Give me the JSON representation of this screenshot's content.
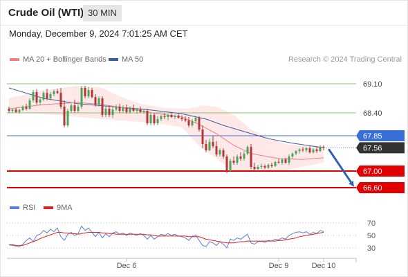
{
  "header": {
    "title": "Crude Oil (WTI)",
    "timeframe": "30 MIN",
    "datetime": "Monday, December 9, 2024 7:01:25 AM CET"
  },
  "legend": {
    "ma20_label": "MA 20 + Bollinger Bands",
    "ma20_color": "#f08080",
    "ma50_label": "MA 50",
    "ma50_color": "#3a5fa0"
  },
  "credit": "Research © 2024 Trading Central",
  "rsi_legend": {
    "rsi_label": "RSI",
    "rsi_color": "#5b7fd6",
    "ma9_label": "9MA",
    "ma9_color": "#e02020"
  },
  "chart_data": [
    {
      "type": "candlestick",
      "title": "Crude Oil (WTI)",
      "timeframe": "30 MIN",
      "ylim": [
        66.5,
        69.3
      ],
      "x_tick_labels": [
        "Dec 6",
        "Dec 9",
        "Dec 10"
      ],
      "candles": [
        [
          68.5,
          68.55,
          68.4,
          68.45
        ],
        [
          68.45,
          68.5,
          68.4,
          68.48
        ],
        [
          68.48,
          68.52,
          68.4,
          68.42
        ],
        [
          68.42,
          68.5,
          68.38,
          68.47
        ],
        [
          68.47,
          68.58,
          68.44,
          68.55
        ],
        [
          68.55,
          68.62,
          68.46,
          68.5
        ],
        [
          68.5,
          68.75,
          68.48,
          68.7
        ],
        [
          68.7,
          68.95,
          68.65,
          68.9
        ],
        [
          68.9,
          68.98,
          68.6,
          68.65
        ],
        [
          68.65,
          68.78,
          68.58,
          68.72
        ],
        [
          68.72,
          68.92,
          68.68,
          68.88
        ],
        [
          68.88,
          68.98,
          68.7,
          68.75
        ],
        [
          68.75,
          68.9,
          68.7,
          68.85
        ],
        [
          68.85,
          68.96,
          68.8,
          68.92
        ],
        [
          68.92,
          68.98,
          68.85,
          68.88
        ],
        [
          68.88,
          69.0,
          68.5,
          68.55
        ],
        [
          68.55,
          68.7,
          68.05,
          68.1
        ],
        [
          68.1,
          68.5,
          68.05,
          68.45
        ],
        [
          68.45,
          68.62,
          68.4,
          68.58
        ],
        [
          68.58,
          68.72,
          68.4,
          68.45
        ],
        [
          68.45,
          68.6,
          68.4,
          68.55
        ],
        [
          68.55,
          69.05,
          68.5,
          69.0
        ],
        [
          69.0,
          69.05,
          68.75,
          68.8
        ],
        [
          68.8,
          69.02,
          68.75,
          68.95
        ],
        [
          68.95,
          69.0,
          68.75,
          68.78
        ],
        [
          68.78,
          68.85,
          68.55,
          68.6
        ],
        [
          68.6,
          68.8,
          68.55,
          68.75
        ],
        [
          68.75,
          68.8,
          68.3,
          68.35
        ],
        [
          68.35,
          68.55,
          68.3,
          68.5
        ],
        [
          68.5,
          68.58,
          68.3,
          68.35
        ],
        [
          68.35,
          68.55,
          68.28,
          68.48
        ],
        [
          68.48,
          68.6,
          68.44,
          68.55
        ],
        [
          68.55,
          68.62,
          68.4,
          68.45
        ],
        [
          68.45,
          68.58,
          68.4,
          68.52
        ],
        [
          68.52,
          68.6,
          68.38,
          68.42
        ],
        [
          68.42,
          68.55,
          68.38,
          68.5
        ],
        [
          68.5,
          68.6,
          68.42,
          68.45
        ],
        [
          68.45,
          68.52,
          68.38,
          68.48
        ],
        [
          68.48,
          68.55,
          68.4,
          68.42
        ],
        [
          68.42,
          68.5,
          68.38,
          68.45
        ],
        [
          68.45,
          68.5,
          68.1,
          68.15
        ],
        [
          68.15,
          68.4,
          68.1,
          68.35
        ],
        [
          68.35,
          68.4,
          68.1,
          68.15
        ],
        [
          68.15,
          68.32,
          68.1,
          68.25
        ],
        [
          68.25,
          68.35,
          68.2,
          68.32
        ],
        [
          68.32,
          68.4,
          68.25,
          68.3
        ],
        [
          68.3,
          68.38,
          68.22,
          68.35
        ],
        [
          68.35,
          68.4,
          68.28,
          68.3
        ],
        [
          68.3,
          68.36,
          68.25,
          68.33
        ],
        [
          68.33,
          68.38,
          68.26,
          68.28
        ],
        [
          68.28,
          68.34,
          68.2,
          68.25
        ],
        [
          68.25,
          68.32,
          68.18,
          68.22
        ],
        [
          68.22,
          68.3,
          68.05,
          68.1
        ],
        [
          68.1,
          68.25,
          68.05,
          68.2
        ],
        [
          68.2,
          68.3,
          68.15,
          68.28
        ],
        [
          68.28,
          68.32,
          67.95,
          68.0
        ],
        [
          68.0,
          68.1,
          67.55,
          67.65
        ],
        [
          67.65,
          67.75,
          67.45,
          67.5
        ],
        [
          67.5,
          67.78,
          67.48,
          67.7
        ],
        [
          67.7,
          67.85,
          67.55,
          67.6
        ],
        [
          67.6,
          67.72,
          67.35,
          67.4
        ],
        [
          67.4,
          67.55,
          67.35,
          67.5
        ],
        [
          67.5,
          67.55,
          67.3,
          67.35
        ],
        [
          67.35,
          67.4,
          66.95,
          67.0
        ],
        [
          67.0,
          67.3,
          66.98,
          67.25
        ],
        [
          67.25,
          67.35,
          67.15,
          67.2
        ],
        [
          67.2,
          67.4,
          67.15,
          67.35
        ],
        [
          67.35,
          67.45,
          67.25,
          67.3
        ],
        [
          67.3,
          67.48,
          67.25,
          67.42
        ],
        [
          67.42,
          67.62,
          67.38,
          67.58
        ],
        [
          67.58,
          67.65,
          67.05,
          67.1
        ],
        [
          67.1,
          67.2,
          67.0,
          67.05
        ],
        [
          67.05,
          67.15,
          67.0,
          67.1
        ],
        [
          67.1,
          67.18,
          67.05,
          67.12
        ],
        [
          67.12,
          67.16,
          67.05,
          67.08
        ],
        [
          67.08,
          67.18,
          67.05,
          67.15
        ],
        [
          67.15,
          67.2,
          67.08,
          67.12
        ],
        [
          67.12,
          67.25,
          67.1,
          67.22
        ],
        [
          67.22,
          67.3,
          67.18,
          67.2
        ],
        [
          67.2,
          67.3,
          67.15,
          67.28
        ],
        [
          67.28,
          67.32,
          67.18,
          67.2
        ],
        [
          67.2,
          67.4,
          67.15,
          67.35
        ],
        [
          67.35,
          67.45,
          67.3,
          67.42
        ],
        [
          67.42,
          67.5,
          67.38,
          67.48
        ],
        [
          67.48,
          67.55,
          67.42,
          67.52
        ],
        [
          67.52,
          67.58,
          67.46,
          67.5
        ],
        [
          67.5,
          67.58,
          67.45,
          67.55
        ],
        [
          67.55,
          67.6,
          67.42,
          67.45
        ],
        [
          67.45,
          67.55,
          67.42,
          67.52
        ],
        [
          67.52,
          67.58,
          67.44,
          67.48
        ],
        [
          67.48,
          67.62,
          67.46,
          67.58
        ],
        [
          67.58,
          67.62,
          67.5,
          67.56
        ]
      ],
      "ma20": [
        [
          0,
          68.5
        ],
        [
          10,
          68.6
        ],
        [
          20,
          68.65
        ],
        [
          27,
          68.6
        ],
        [
          35,
          68.5
        ],
        [
          43,
          68.38
        ],
        [
          50,
          68.3
        ],
        [
          55,
          68.12
        ],
        [
          60,
          67.9
        ],
        [
          65,
          67.62
        ],
        [
          70,
          67.42
        ],
        [
          78,
          67.3
        ],
        [
          85,
          67.28
        ],
        [
          91,
          67.32
        ]
      ],
      "bollinger_upper": [
        [
          0,
          68.75
        ],
        [
          10,
          68.95
        ],
        [
          20,
          69.05
        ],
        [
          27,
          69.0
        ],
        [
          32,
          68.8
        ],
        [
          38,
          68.62
        ],
        [
          45,
          68.52
        ],
        [
          52,
          68.5
        ],
        [
          56,
          68.58
        ],
        [
          60,
          68.55
        ],
        [
          65,
          68.35
        ],
        [
          70,
          68.0
        ],
        [
          75,
          67.8
        ],
        [
          80,
          67.65
        ],
        [
          85,
          67.6
        ],
        [
          91,
          67.62
        ]
      ],
      "bollinger_lower": [
        [
          0,
          68.4
        ],
        [
          10,
          68.38
        ],
        [
          20,
          68.3
        ],
        [
          27,
          68.25
        ],
        [
          35,
          68.2
        ],
        [
          43,
          68.15
        ],
        [
          50,
          68.05
        ],
        [
          55,
          67.6
        ],
        [
          60,
          67.3
        ],
        [
          65,
          66.98
        ],
        [
          70,
          66.98
        ],
        [
          78,
          67.0
        ],
        [
          85,
          67.1
        ],
        [
          91,
          67.2
        ]
      ],
      "ma50": [
        [
          0,
          69.0
        ],
        [
          10,
          68.75
        ],
        [
          20,
          68.62
        ],
        [
          30,
          68.55
        ],
        [
          40,
          68.48
        ],
        [
          50,
          68.38
        ],
        [
          57,
          68.25
        ],
        [
          62,
          68.1
        ],
        [
          68,
          67.95
        ],
        [
          75,
          67.78
        ],
        [
          82,
          67.67
        ],
        [
          91,
          67.56
        ]
      ],
      "levels": [
        {
          "label": "69.10",
          "value": 69.1,
          "color": "#8dc26f",
          "kind": "resistance"
        },
        {
          "label": "68.40",
          "value": 68.4,
          "color": "#8dc26f",
          "kind": "resistance"
        },
        {
          "label": "67.85",
          "value": 67.85,
          "color": "#3a6fd8",
          "kind": "pivot"
        },
        {
          "label": "67.56",
          "value": 67.56,
          "color": "#333333",
          "kind": "last"
        },
        {
          "label": "67.00",
          "value": 67.0,
          "color": "#e00000",
          "kind": "support"
        },
        {
          "label": "66.60",
          "value": 66.6,
          "color": "#e00000",
          "kind": "support"
        }
      ],
      "forecast_arrow": {
        "from_index": 91,
        "from_value": 67.56,
        "to_value": 66.62,
        "color": "#2e63b8"
      },
      "legend_placement": "top-left"
    },
    {
      "type": "line",
      "title": "RSI",
      "ylim": [
        20,
        80
      ],
      "y_ticks": [
        "70",
        "50",
        "30"
      ],
      "series": [
        {
          "name": "RSI",
          "color": "#5b7fd6",
          "values": [
            35,
            34,
            33,
            32,
            36,
            42,
            46,
            40,
            50,
            52,
            58,
            54,
            60,
            56,
            62,
            48,
            42,
            52,
            55,
            50,
            53,
            65,
            58,
            62,
            55,
            48,
            55,
            46,
            53,
            48,
            54,
            56,
            52,
            54,
            50,
            54,
            52,
            50,
            53,
            50,
            44,
            50,
            44,
            48,
            52,
            50,
            53,
            50,
            52,
            49,
            48,
            46,
            42,
            48,
            51,
            42,
            34,
            32,
            40,
            38,
            34,
            40,
            36,
            30,
            44,
            42,
            46,
            44,
            48,
            52,
            38,
            36,
            40,
            41,
            39,
            42,
            41,
            44,
            43,
            46,
            44,
            50,
            53,
            55,
            56,
            54,
            56,
            52,
            55,
            53,
            58,
            56
          ]
        },
        {
          "name": "9MA",
          "color": "#e02020",
          "values": [
            35,
            35,
            34,
            34,
            34,
            36,
            38,
            40,
            42,
            45,
            47,
            49,
            51,
            53,
            55,
            55,
            54,
            54,
            53,
            53,
            52,
            53,
            54,
            55,
            55,
            55,
            55,
            54,
            54,
            53,
            53,
            52,
            52,
            52,
            52,
            52,
            52,
            52,
            52,
            52,
            51,
            51,
            50,
            49,
            49,
            49,
            49,
            49,
            49,
            49,
            49,
            49,
            48,
            48,
            48,
            48,
            46,
            44,
            43,
            42,
            41,
            40,
            39,
            38,
            38,
            38,
            39,
            40,
            40,
            41,
            41,
            41,
            41,
            41,
            41,
            41,
            41,
            41,
            42,
            42,
            43,
            44,
            45,
            46,
            48,
            49,
            50,
            51,
            52,
            53,
            54,
            55
          ]
        }
      ]
    }
  ]
}
